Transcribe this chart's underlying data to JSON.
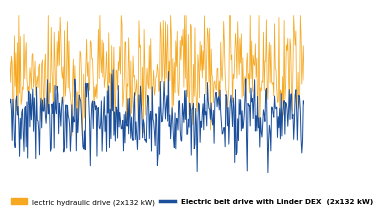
{
  "legend_label_orange": "lectric hydraulic drive (2x132 kW)",
  "legend_label_blue": "Electric belt drive with Linder DEX  (2x132 kW)",
  "orange_color": "#F5A820",
  "blue_color": "#1B4F9B",
  "n_points": 400,
  "seed": 7,
  "ylim": [
    -0.85,
    1.05
  ],
  "background_color": "#ffffff",
  "legend_fontsize": 5.2,
  "linewidth_orange": 0.55,
  "linewidth_blue": 0.7
}
